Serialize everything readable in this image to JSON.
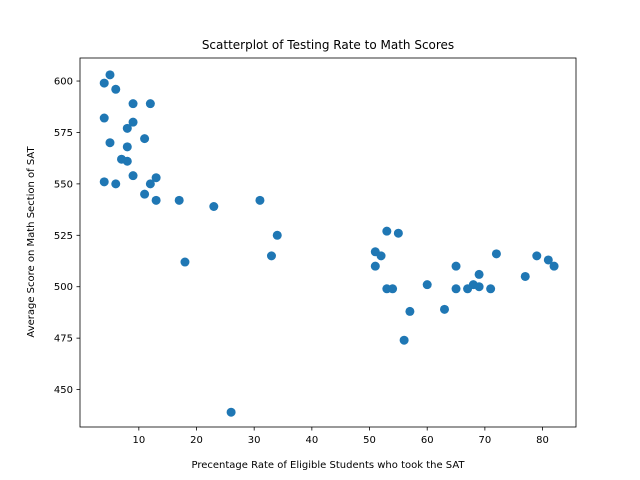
{
  "chart_data": {
    "type": "scatter",
    "title": "Scatterplot of Testing Rate to Math Scores",
    "xlabel": "Precentage Rate of Eligible Students who took the SAT",
    "ylabel": "Average Score on Math Section of SAT",
    "xlim": [
      -0.2,
      85.8
    ],
    "ylim": [
      431.8,
      611.2
    ],
    "xticks": [
      10,
      20,
      30,
      40,
      50,
      60,
      70,
      80
    ],
    "yticks": [
      450,
      475,
      500,
      525,
      550,
      575,
      600
    ],
    "grid": false,
    "marker_color": "#1f77b4",
    "points": [
      {
        "x": 4,
        "y": 599
      },
      {
        "x": 5,
        "y": 603
      },
      {
        "x": 6,
        "y": 596
      },
      {
        "x": 4,
        "y": 582
      },
      {
        "x": 5,
        "y": 570
      },
      {
        "x": 4,
        "y": 551
      },
      {
        "x": 6,
        "y": 550
      },
      {
        "x": 7,
        "y": 562
      },
      {
        "x": 8,
        "y": 577
      },
      {
        "x": 8,
        "y": 568
      },
      {
        "x": 8,
        "y": 561
      },
      {
        "x": 9,
        "y": 589
      },
      {
        "x": 9,
        "y": 580
      },
      {
        "x": 9,
        "y": 554
      },
      {
        "x": 11,
        "y": 572
      },
      {
        "x": 11,
        "y": 545
      },
      {
        "x": 12,
        "y": 589
      },
      {
        "x": 12,
        "y": 550
      },
      {
        "x": 13,
        "y": 553
      },
      {
        "x": 13,
        "y": 542
      },
      {
        "x": 17,
        "y": 542
      },
      {
        "x": 18,
        "y": 512
      },
      {
        "x": 23,
        "y": 539
      },
      {
        "x": 26,
        "y": 439
      },
      {
        "x": 31,
        "y": 542
      },
      {
        "x": 33,
        "y": 515
      },
      {
        "x": 34,
        "y": 525
      },
      {
        "x": 51,
        "y": 517
      },
      {
        "x": 51,
        "y": 510
      },
      {
        "x": 52,
        "y": 515
      },
      {
        "x": 53,
        "y": 527
      },
      {
        "x": 53,
        "y": 499
      },
      {
        "x": 54,
        "y": 499
      },
      {
        "x": 55,
        "y": 526
      },
      {
        "x": 56,
        "y": 474
      },
      {
        "x": 57,
        "y": 488
      },
      {
        "x": 60,
        "y": 501
      },
      {
        "x": 63,
        "y": 489
      },
      {
        "x": 65,
        "y": 510
      },
      {
        "x": 65,
        "y": 499
      },
      {
        "x": 67,
        "y": 499
      },
      {
        "x": 68,
        "y": 501
      },
      {
        "x": 69,
        "y": 506
      },
      {
        "x": 69,
        "y": 500
      },
      {
        "x": 71,
        "y": 499
      },
      {
        "x": 72,
        "y": 516
      },
      {
        "x": 77,
        "y": 505
      },
      {
        "x": 79,
        "y": 515
      },
      {
        "x": 81,
        "y": 513
      },
      {
        "x": 82,
        "y": 510
      }
    ]
  }
}
